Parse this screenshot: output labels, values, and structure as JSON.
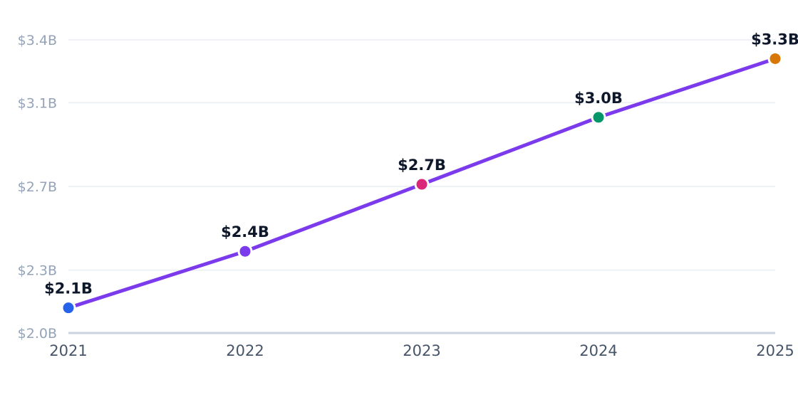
{
  "chart_data": {
    "type": "line",
    "categories": [
      "2021",
      "2022",
      "2023",
      "2024",
      "2025"
    ],
    "values": [
      2.12,
      2.39,
      2.71,
      3.03,
      3.31
    ],
    "data_labels": [
      "$2.1B",
      "$2.4B",
      "$2.7B",
      "$3.0B",
      "$3.3B"
    ],
    "y_ticks": [
      {
        "value": 2.0,
        "label": "$2.0B"
      },
      {
        "value": 2.3,
        "label": "$2.3B"
      },
      {
        "value": 2.7,
        "label": "$2.7B"
      },
      {
        "value": 3.1,
        "label": "$3.1B"
      },
      {
        "value": 3.4,
        "label": "$3.4B"
      }
    ],
    "ylim": [
      2.0,
      3.4
    ],
    "grid": true,
    "line_color": "#7c3aed",
    "point_colors": [
      "#2563eb",
      "#7c3aed",
      "#db2777",
      "#059669",
      "#d97706"
    ],
    "title": "",
    "xlabel": "",
    "ylabel": ""
  }
}
